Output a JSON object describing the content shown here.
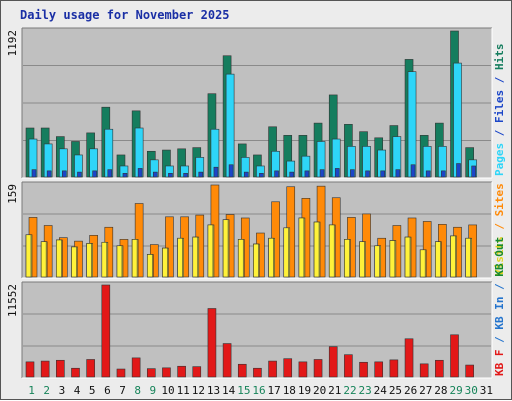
{
  "title": "Daily usage for November 2025",
  "colors": {
    "hits": "#157d5e",
    "files": "#2ed5f8",
    "pages": "#1b46c8",
    "visits": "#fff23a",
    "sites": "#ff8a08",
    "kbf": "#e21818",
    "kb_in": "#2474cd",
    "kb_out": "#178a30",
    "panel": "#c0c0c0",
    "weekend_label": "#17845a",
    "weekday_label": "#111111"
  },
  "chart_data": [
    {
      "type": "bar",
      "title": "",
      "y_max_label": "1192",
      "ylim": [
        0,
        1192
      ],
      "categories": [
        "1",
        "2",
        "3",
        "4",
        "5",
        "6",
        "7",
        "8",
        "9",
        "10",
        "11",
        "12",
        "13",
        "14",
        "15",
        "16",
        "17",
        "18",
        "19",
        "20",
        "21",
        "22",
        "23",
        "24",
        "25",
        "26",
        "27",
        "28",
        "29",
        "30",
        "31"
      ],
      "side_labels": [
        {
          "text": "Pages",
          "color": "#2ed5f8"
        },
        {
          "text": " / ",
          "color": "#1b46c8"
        },
        {
          "text": "Files",
          "color": "#1b46c8"
        },
        {
          "text": " / ",
          "color": "#1b46c8"
        },
        {
          "text": "Hits",
          "color": "#157d5e"
        }
      ],
      "series": [
        {
          "name": "Hits",
          "color": "#157d5e",
          "values": [
            400,
            400,
            330,
            290,
            360,
            570,
            180,
            540,
            210,
            220,
            230,
            240,
            680,
            990,
            270,
            180,
            410,
            340,
            340,
            440,
            670,
            430,
            370,
            320,
            420,
            960,
            340,
            440,
            1192,
            240,
            0
          ]
        },
        {
          "name": "Files",
          "color": "#2ed5f8",
          "values": [
            310,
            270,
            230,
            180,
            230,
            390,
            90,
            400,
            140,
            90,
            90,
            160,
            390,
            840,
            160,
            90,
            210,
            130,
            170,
            290,
            310,
            250,
            250,
            220,
            330,
            860,
            250,
            250,
            930,
            140,
            0
          ]
        },
        {
          "name": "Pages",
          "color": "#1b46c8",
          "values": [
            60,
            50,
            50,
            40,
            50,
            60,
            30,
            70,
            40,
            30,
            30,
            40,
            80,
            100,
            40,
            30,
            50,
            40,
            50,
            60,
            70,
            60,
            50,
            50,
            60,
            100,
            50,
            50,
            110,
            90,
            0
          ]
        }
      ]
    },
    {
      "type": "bar",
      "title": "",
      "y_max_label": "159",
      "ylim": [
        0,
        159
      ],
      "categories": [
        "1",
        "2",
        "3",
        "4",
        "5",
        "6",
        "7",
        "8",
        "9",
        "10",
        "11",
        "12",
        "13",
        "14",
        "15",
        "16",
        "17",
        "18",
        "19",
        "20",
        "21",
        "22",
        "23",
        "24",
        "25",
        "26",
        "27",
        "28",
        "29",
        "30",
        "31"
      ],
      "side_labels": [
        {
          "text": "Visits",
          "color": "#e0d420"
        },
        {
          "text": " / ",
          "color": "#ff8a08"
        },
        {
          "text": "Sites",
          "color": "#ff8a08"
        }
      ],
      "series": [
        {
          "name": "Sites",
          "color": "#ff8a08",
          "values": [
            103,
            89,
            68,
            62,
            72,
            86,
            65,
            127,
            56,
            104,
            104,
            107,
            159,
            108,
            102,
            76,
            130,
            156,
            136,
            157,
            137,
            103,
            109,
            67,
            89,
            102,
            96,
            91,
            86,
            90,
            0
          ]
        },
        {
          "name": "Visits",
          "color": "#fff23a",
          "values": [
            73,
            61,
            64,
            52,
            58,
            60,
            54,
            65,
            39,
            50,
            67,
            69,
            90,
            99,
            65,
            57,
            67,
            85,
            102,
            95,
            90,
            65,
            61,
            54,
            63,
            69,
            47,
            61,
            71,
            67,
            0
          ]
        }
      ]
    },
    {
      "type": "bar",
      "title": "",
      "y_max_label": "11552",
      "ylim": [
        0,
        11552
      ],
      "categories": [
        "1",
        "2",
        "3",
        "4",
        "5",
        "6",
        "7",
        "8",
        "9",
        "10",
        "11",
        "12",
        "13",
        "14",
        "15",
        "16",
        "17",
        "18",
        "19",
        "20",
        "21",
        "22",
        "23",
        "24",
        "25",
        "26",
        "27",
        "28",
        "29",
        "30",
        "31"
      ],
      "side_labels": [
        {
          "text": "KB F",
          "color": "#e21818"
        },
        {
          "text": " / ",
          "color": "#2474cd"
        },
        {
          "text": "KB In",
          "color": "#2474cd"
        },
        {
          "text": " / ",
          "color": "#2474cd"
        },
        {
          "text": "KB Out",
          "color": "#178a30"
        }
      ],
      "series": [
        {
          "name": "KB F",
          "color": "#e21818",
          "values": [
            1900,
            2000,
            2100,
            1100,
            2200,
            11552,
            1000,
            2400,
            1050,
            1150,
            1350,
            1300,
            8600,
            4200,
            1600,
            1100,
            2000,
            2300,
            1900,
            2200,
            3800,
            2800,
            1850,
            1900,
            2150,
            4800,
            1650,
            2100,
            5300,
            1500,
            0
          ]
        }
      ]
    }
  ],
  "day_labels": [
    {
      "text": "1",
      "weekend": true
    },
    {
      "text": "2",
      "weekend": true
    },
    {
      "text": "3",
      "weekend": false
    },
    {
      "text": "4",
      "weekend": false
    },
    {
      "text": "5",
      "weekend": false
    },
    {
      "text": "6",
      "weekend": false
    },
    {
      "text": "7",
      "weekend": false
    },
    {
      "text": "8",
      "weekend": true
    },
    {
      "text": "9",
      "weekend": true
    },
    {
      "text": "10",
      "weekend": false
    },
    {
      "text": "11",
      "weekend": false
    },
    {
      "text": "12",
      "weekend": false
    },
    {
      "text": "13",
      "weekend": false
    },
    {
      "text": "14",
      "weekend": false
    },
    {
      "text": "15",
      "weekend": true
    },
    {
      "text": "16",
      "weekend": true
    },
    {
      "text": "17",
      "weekend": false
    },
    {
      "text": "18",
      "weekend": false
    },
    {
      "text": "19",
      "weekend": false
    },
    {
      "text": "20",
      "weekend": false
    },
    {
      "text": "21",
      "weekend": false
    },
    {
      "text": "22",
      "weekend": true
    },
    {
      "text": "23",
      "weekend": true
    },
    {
      "text": "24",
      "weekend": false
    },
    {
      "text": "25",
      "weekend": false
    },
    {
      "text": "26",
      "weekend": false
    },
    {
      "text": "27",
      "weekend": false
    },
    {
      "text": "28",
      "weekend": false
    },
    {
      "text": "29",
      "weekend": true
    },
    {
      "text": "30",
      "weekend": true
    },
    {
      "text": "31",
      "weekend": false
    }
  ]
}
